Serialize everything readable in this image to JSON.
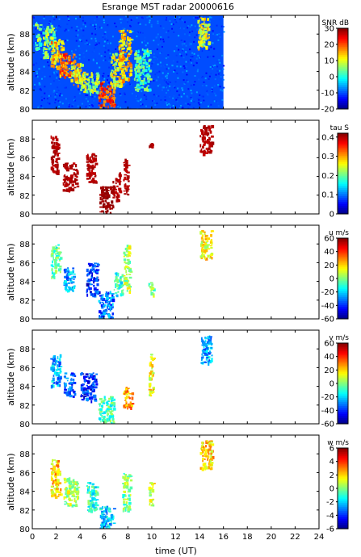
{
  "chart_data": {
    "type": "heatmap",
    "title": "Esrange MST radar 20000616",
    "xlabel": "time (UT)",
    "x_ticks": [
      0,
      2,
      4,
      6,
      8,
      10,
      12,
      14,
      16,
      18,
      20,
      22,
      24
    ],
    "xlim": [
      0,
      24
    ],
    "panels": [
      {
        "key": "snr",
        "ylabel": "altitude (km)",
        "ylim": [
          80,
          90
        ],
        "y_ticks": [
          80,
          82,
          84,
          86,
          88
        ],
        "colorbar_label": "SNR dB",
        "colorbar_range": [
          -20,
          30
        ],
        "colorbar_ticks": [
          -20,
          -10,
          0,
          10,
          20,
          30
        ],
        "background": "noise",
        "data_time_range": [
          0,
          16
        ],
        "echo_regions": [
          {
            "t": [
              0.2,
              0.6
            ],
            "alt": [
              86.5,
              89.5
            ],
            "value": 4
          },
          {
            "t": [
              0.8,
              1.8
            ],
            "alt": [
              85.5,
              89
            ],
            "value": 6
          },
          {
            "t": [
              1.5,
              2.5
            ],
            "alt": [
              84.5,
              87.5
            ],
            "value": 14
          },
          {
            "t": [
              2.2,
              3.5
            ],
            "alt": [
              83.5,
              86
            ],
            "value": 18
          },
          {
            "t": [
              3.2,
              4.2
            ],
            "alt": [
              82.5,
              85
            ],
            "value": 12
          },
          {
            "t": [
              4.0,
              5.5
            ],
            "alt": [
              81.8,
              84
            ],
            "value": 8
          },
          {
            "t": [
              5.5,
              6.8
            ],
            "alt": [
              80.2,
              83
            ],
            "value": 20
          },
          {
            "t": [
              6.5,
              7.5
            ],
            "alt": [
              82.5,
              86
            ],
            "value": 10
          },
          {
            "t": [
              7.2,
              8.2
            ],
            "alt": [
              83,
              88.5
            ],
            "value": 14
          },
          {
            "t": [
              8.5,
              9.8
            ],
            "alt": [
              82,
              86.5
            ],
            "value": 3
          },
          {
            "t": [
              13.8,
              14.8
            ],
            "alt": [
              86.5,
              89.8
            ],
            "value": 10
          }
        ]
      },
      {
        "key": "tau",
        "ylabel": "altitude (km)",
        "ylim": [
          80,
          90
        ],
        "y_ticks": [
          80,
          82,
          84,
          86,
          88
        ],
        "colorbar_label": "tau S",
        "colorbar_range": [
          0,
          0.42
        ],
        "colorbar_ticks": [
          0,
          0.1,
          0.2,
          0.3,
          0.4
        ],
        "colorbar_tick_labels": [
          "0",
          "0.1",
          "0.2",
          "0.3",
          "0.4"
        ],
        "background": "none",
        "echo_regions": [
          {
            "t": [
              1.5,
              2.1
            ],
            "alt": [
              84.5,
              88.5
            ],
            "value": 0.4
          },
          {
            "t": [
              2.5,
              3.7
            ],
            "alt": [
              82.5,
              85.5
            ],
            "value": 0.4
          },
          {
            "t": [
              4.5,
              5.3
            ],
            "alt": [
              83.5,
              86.5
            ],
            "value": 0.4
          },
          {
            "t": [
              5.6,
              6.7
            ],
            "alt": [
              80.1,
              83
            ],
            "value": 0.41
          },
          {
            "t": [
              6.7,
              7.3
            ],
            "alt": [
              81.5,
              84.5
            ],
            "value": 0.4
          },
          {
            "t": [
              7.6,
              8.0
            ],
            "alt": [
              82,
              86
            ],
            "value": 0.4
          },
          {
            "t": [
              9.7,
              10.1
            ],
            "alt": [
              87.2,
              87.6
            ],
            "value": 0.4
          },
          {
            "t": [
              14.0,
              15.0
            ],
            "alt": [
              86.5,
              89.5
            ],
            "value": 0.4
          }
        ]
      },
      {
        "key": "u",
        "ylabel": "altitude (km)",
        "ylim": [
          80,
          90
        ],
        "y_ticks": [
          80,
          82,
          84,
          86,
          88
        ],
        "colorbar_label": "u m/s",
        "colorbar_range": [
          -60,
          60
        ],
        "colorbar_ticks": [
          -60,
          -40,
          -20,
          0,
          20,
          40,
          60
        ],
        "background": "none",
        "echo_regions": [
          {
            "t": [
              1.5,
              2.3
            ],
            "alt": [
              84.5,
              88
            ],
            "value": -5
          },
          {
            "t": [
              2.6,
              3.5
            ],
            "alt": [
              83,
              85.5
            ],
            "value": -25
          },
          {
            "t": [
              4.5,
              5.5
            ],
            "alt": [
              82.5,
              86
            ],
            "value": -40
          },
          {
            "t": [
              5.5,
              6.7
            ],
            "alt": [
              80.1,
              83
            ],
            "value": -30
          },
          {
            "t": [
              6.8,
              7.6
            ],
            "alt": [
              82.5,
              85
            ],
            "value": -10
          },
          {
            "t": [
              7.6,
              8.2
            ],
            "alt": [
              83,
              88
            ],
            "value": 5
          },
          {
            "t": [
              9.7,
              10.1
            ],
            "alt": [
              82.5,
              84
            ],
            "value": 0
          },
          {
            "t": [
              14.0,
              15.0
            ],
            "alt": [
              86.5,
              89.5
            ],
            "value": 15
          }
        ]
      },
      {
        "key": "v",
        "ylabel": "altitude (km)",
        "ylim": [
          80,
          90
        ],
        "y_ticks": [
          80,
          82,
          84,
          86,
          88
        ],
        "colorbar_label": "v m/s",
        "colorbar_range": [
          -60,
          60
        ],
        "colorbar_ticks": [
          -60,
          -40,
          -20,
          0,
          20,
          40,
          60
        ],
        "background": "none",
        "echo_regions": [
          {
            "t": [
              1.5,
              2.3
            ],
            "alt": [
              84,
              87.5
            ],
            "value": -25
          },
          {
            "t": [
              2.6,
              3.5
            ],
            "alt": [
              83,
              85.5
            ],
            "value": -35
          },
          {
            "t": [
              4.0,
              5.3
            ],
            "alt": [
              82.5,
              85.5
            ],
            "value": -40
          },
          {
            "t": [
              5.5,
              6.8
            ],
            "alt": [
              80.1,
              83
            ],
            "value": -5
          },
          {
            "t": [
              7.5,
              8.3
            ],
            "alt": [
              81.8,
              84
            ],
            "value": 25
          },
          {
            "t": [
              9.7,
              10.1
            ],
            "alt": [
              83,
              87.5
            ],
            "value": 15
          },
          {
            "t": [
              14.0,
              15.0
            ],
            "alt": [
              86.5,
              89.5
            ],
            "value": -25
          }
        ]
      },
      {
        "key": "w",
        "ylabel": "altitude (km)",
        "ylim": [
          80,
          90
        ],
        "y_ticks": [
          80,
          82,
          84,
          86,
          88
        ],
        "colorbar_label": "w m/s",
        "colorbar_range": [
          -6,
          6
        ],
        "colorbar_ticks": [
          -6,
          -4,
          -2,
          0,
          2,
          4,
          6
        ],
        "background": "none",
        "echo_regions": [
          {
            "t": [
              1.5,
              2.3
            ],
            "alt": [
              83.5,
              87.5
            ],
            "value": 2
          },
          {
            "t": [
              2.6,
              3.8
            ],
            "alt": [
              82.5,
              85.5
            ],
            "value": 0.5
          },
          {
            "t": [
              4.5,
              5.4
            ],
            "alt": [
              82,
              85
            ],
            "value": -1
          },
          {
            "t": [
              5.6,
              6.8
            ],
            "alt": [
              80.1,
              82.5
            ],
            "value": -2
          },
          {
            "t": [
              7.5,
              8.2
            ],
            "alt": [
              82,
              86
            ],
            "value": 0
          },
          {
            "t": [
              9.7,
              10.1
            ],
            "alt": [
              82.5,
              85
            ],
            "value": 1
          },
          {
            "t": [
              14.0,
              15.0
            ],
            "alt": [
              86.5,
              89.5
            ],
            "value": 2
          }
        ]
      }
    ]
  }
}
